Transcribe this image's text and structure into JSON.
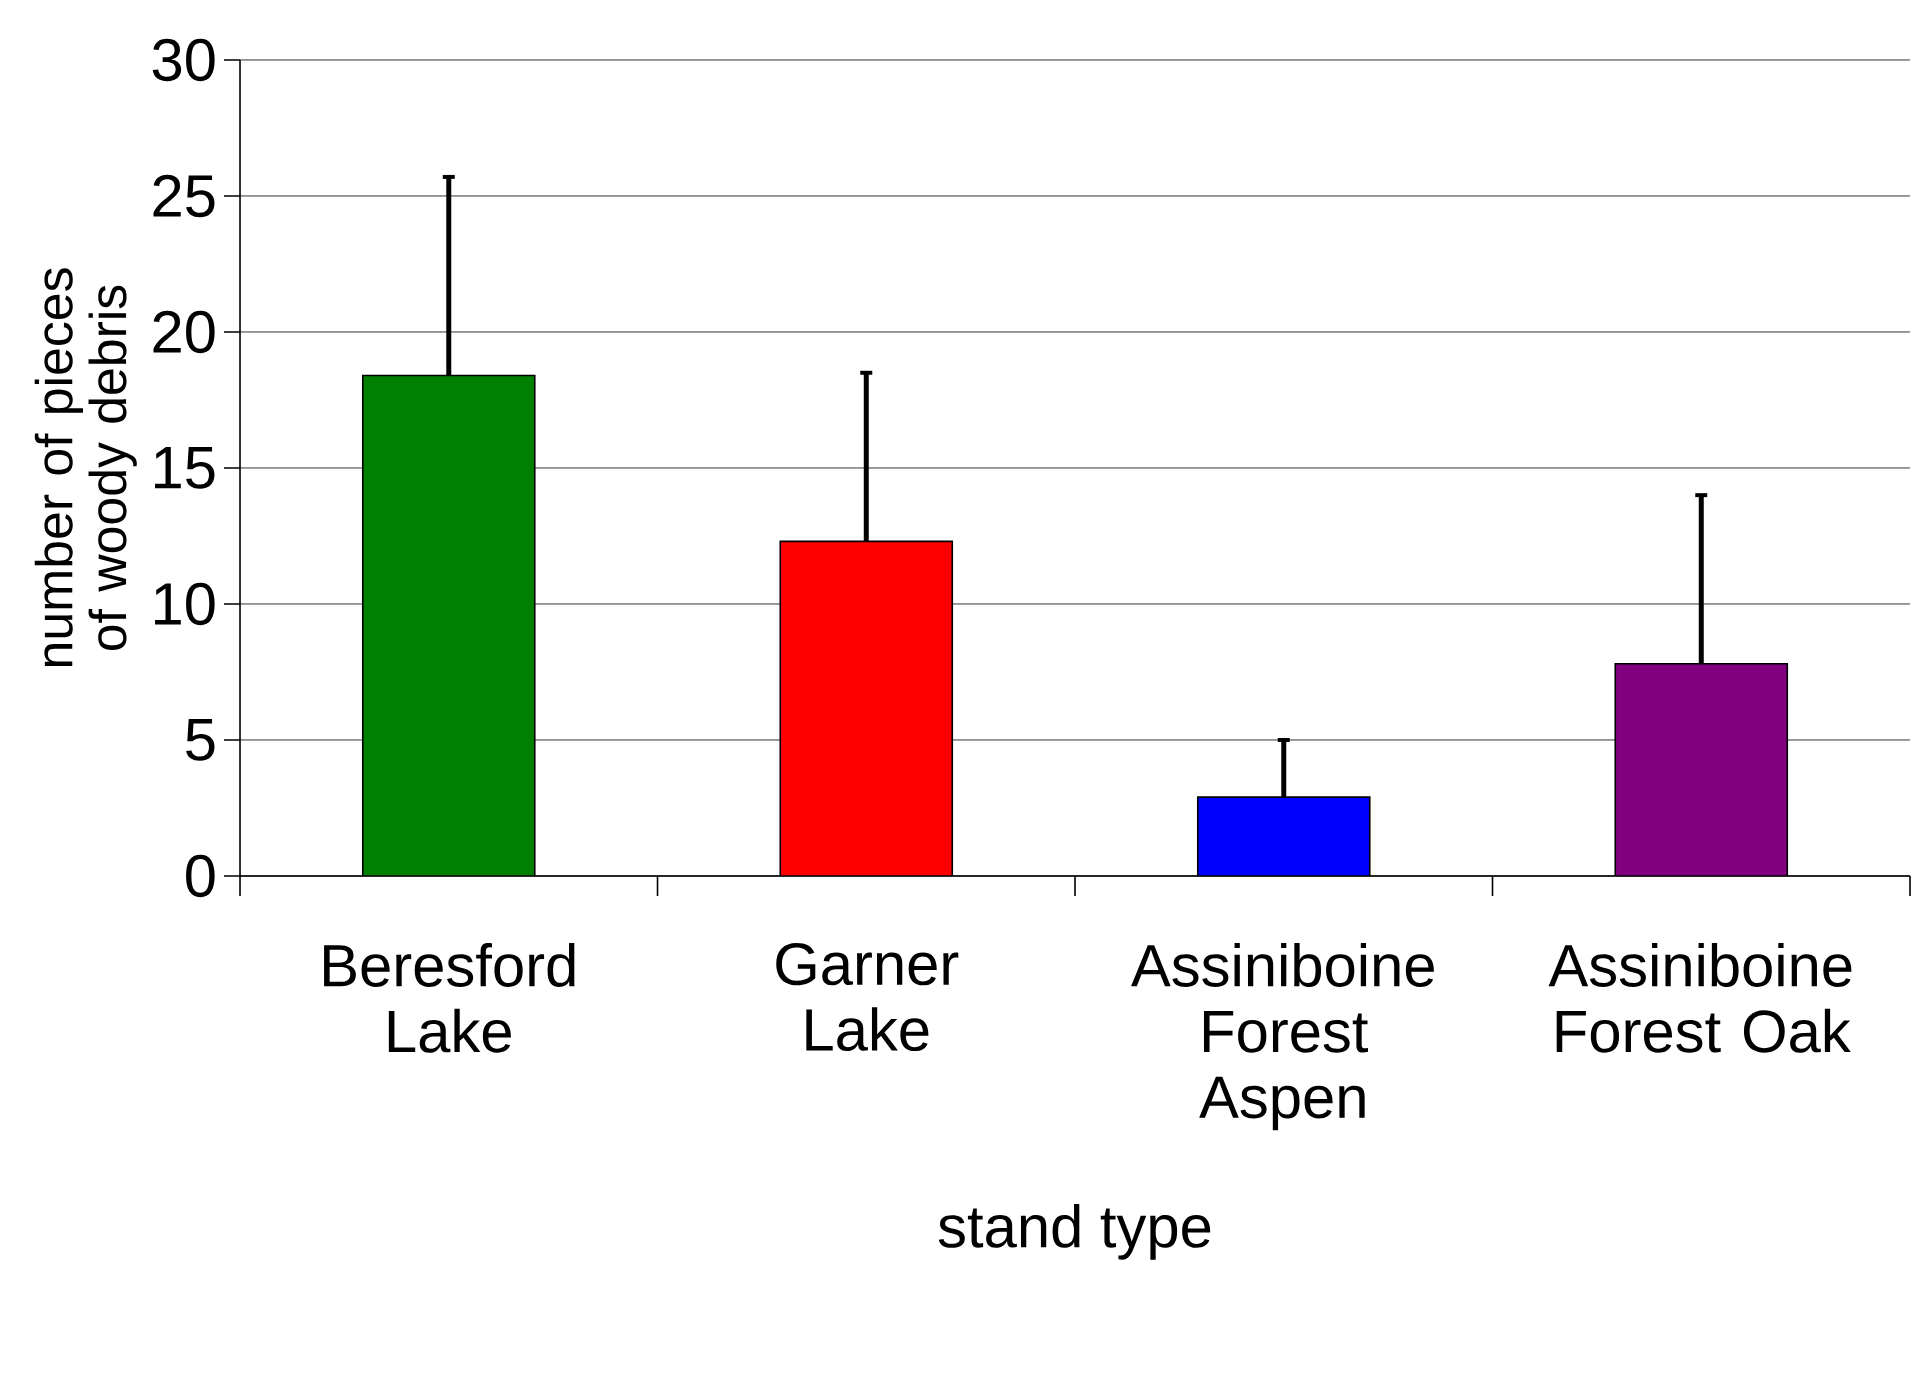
{
  "chart_data": {
    "type": "bar",
    "xlabel": "stand type",
    "ylabel": "number of pieces of woody debris",
    "categories": [
      "Beresford Lake",
      "Garner Lake",
      "Assiniboine Forest Aspen",
      "Assiniboine Forest Oak"
    ],
    "values": [
      18.4,
      12.3,
      2.9,
      7.8
    ],
    "errors": [
      [
        18.4,
        25.7
      ],
      [
        12.3,
        18.5
      ],
      [
        2.9,
        5.0
      ],
      [
        7.8,
        14.0
      ]
    ],
    "colors": [
      "#008000",
      "#ff0000",
      "#0000ff",
      "#800080"
    ],
    "ylim": [
      0,
      30
    ],
    "yticks": [
      0,
      5,
      10,
      15,
      20,
      25,
      30
    ],
    "grid": "y"
  }
}
